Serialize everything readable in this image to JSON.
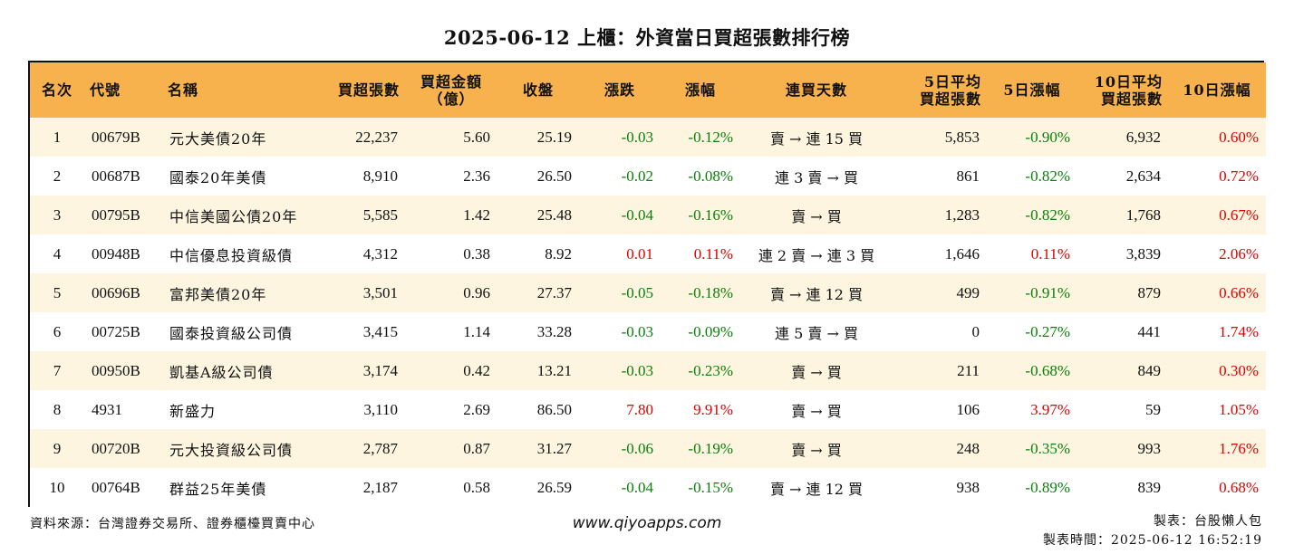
{
  "title": "2025-06-12 上櫃：外資當日買超張數排行榜",
  "headers": {
    "rank": "名次",
    "code": "代號",
    "name": "名稱",
    "buy_lots": "買超張數",
    "amount_l1": "買超金額",
    "amount_l2": "（億）",
    "close": "收盤",
    "change": "漲跌",
    "pct": "漲幅",
    "streak": "連買天數",
    "avg5_l1": "5日平均",
    "avg5_l2": "買超張數",
    "pct5": "5日漲幅",
    "avg10_l1": "10日平均",
    "avg10_l2": "買超張數",
    "pct10": "10日漲幅"
  },
  "rows": [
    {
      "rank": "1",
      "code": "00679B",
      "name": "元大美債20年",
      "buy_lots": "22,237",
      "amount": "5.60",
      "close": "25.19",
      "change": "-0.03",
      "pct": "-0.12%",
      "streak": "賣 → 連 15 買",
      "avg5": "5,853",
      "pct5": "-0.90%",
      "avg10": "6,932",
      "pct10": "0.60%"
    },
    {
      "rank": "2",
      "code": "00687B",
      "name": "國泰20年美債",
      "buy_lots": "8,910",
      "amount": "2.36",
      "close": "26.50",
      "change": "-0.02",
      "pct": "-0.08%",
      "streak": "連 3 賣 → 買",
      "avg5": "861",
      "pct5": "-0.82%",
      "avg10": "2,634",
      "pct10": "0.72%"
    },
    {
      "rank": "3",
      "code": "00795B",
      "name": "中信美國公債20年",
      "buy_lots": "5,585",
      "amount": "1.42",
      "close": "25.48",
      "change": "-0.04",
      "pct": "-0.16%",
      "streak": "賣 → 買",
      "avg5": "1,283",
      "pct5": "-0.82%",
      "avg10": "1,768",
      "pct10": "0.67%"
    },
    {
      "rank": "4",
      "code": "00948B",
      "name": "中信優息投資級債",
      "buy_lots": "4,312",
      "amount": "0.38",
      "close": "8.92",
      "change": "0.01",
      "pct": "0.11%",
      "streak": "連 2 賣 → 連 3 買",
      "avg5": "1,646",
      "pct5": "0.11%",
      "avg10": "3,839",
      "pct10": "2.06%"
    },
    {
      "rank": "5",
      "code": "00696B",
      "name": "富邦美債20年",
      "buy_lots": "3,501",
      "amount": "0.96",
      "close": "27.37",
      "change": "-0.05",
      "pct": "-0.18%",
      "streak": "賣 → 連 12 買",
      "avg5": "499",
      "pct5": "-0.91%",
      "avg10": "879",
      "pct10": "0.66%"
    },
    {
      "rank": "6",
      "code": "00725B",
      "name": "國泰投資級公司債",
      "buy_lots": "3,415",
      "amount": "1.14",
      "close": "33.28",
      "change": "-0.03",
      "pct": "-0.09%",
      "streak": "連 5 賣 → 買",
      "avg5": "0",
      "pct5": "-0.27%",
      "avg10": "441",
      "pct10": "1.74%"
    },
    {
      "rank": "7",
      "code": "00950B",
      "name": "凱基A級公司債",
      "buy_lots": "3,174",
      "amount": "0.42",
      "close": "13.21",
      "change": "-0.03",
      "pct": "-0.23%",
      "streak": "賣 → 買",
      "avg5": "211",
      "pct5": "-0.68%",
      "avg10": "849",
      "pct10": "0.30%"
    },
    {
      "rank": "8",
      "code": "4931",
      "name": "新盛力",
      "buy_lots": "3,110",
      "amount": "2.69",
      "close": "86.50",
      "change": "7.80",
      "pct": "9.91%",
      "streak": "賣 → 買",
      "avg5": "106",
      "pct5": "3.97%",
      "avg10": "59",
      "pct10": "1.05%"
    },
    {
      "rank": "9",
      "code": "00720B",
      "name": "元大投資級公司債",
      "buy_lots": "2,787",
      "amount": "0.87",
      "close": "31.27",
      "change": "-0.06",
      "pct": "-0.19%",
      "streak": "賣 → 買",
      "avg5": "248",
      "pct5": "-0.35%",
      "avg10": "993",
      "pct10": "1.76%"
    },
    {
      "rank": "10",
      "code": "00764B",
      "name": "群益25年美債",
      "buy_lots": "2,187",
      "amount": "0.58",
      "close": "26.59",
      "change": "-0.04",
      "pct": "-0.15%",
      "streak": "賣 → 連 12 買",
      "avg5": "938",
      "pct5": "-0.89%",
      "avg10": "839",
      "pct10": "0.68%"
    }
  ],
  "footer": {
    "source": "資料來源：台灣證券交易所、證券櫃檯買賣中心",
    "website": "www.qiyoapps.com",
    "maker": "製表：台股懶人包",
    "made_time": "製表時間：2025-06-12 16:52:19"
  },
  "colors": {
    "header_bg": "#f7b24e",
    "row_alt": "#fdf5df",
    "up": "#e00000",
    "down": "#0a7f0a"
  }
}
